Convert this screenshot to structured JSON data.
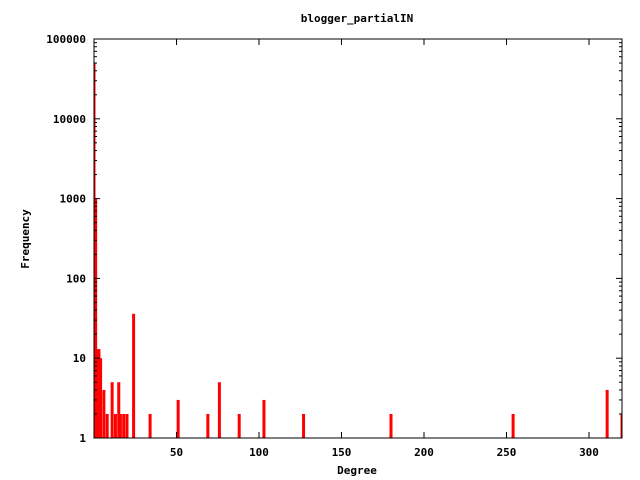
{
  "chart_data": {
    "type": "bar",
    "title": "blogger_partialIN",
    "xlabel": "Degree",
    "ylabel": "Frequency",
    "xlim": [
      0,
      320
    ],
    "ylim": [
      1,
      100000
    ],
    "yscale": "log",
    "grid": false,
    "bar_color": "#ff0000",
    "x_ticks": [
      {
        "value": 50,
        "label": "50"
      },
      {
        "value": 100,
        "label": "100"
      },
      {
        "value": 150,
        "label": "150"
      },
      {
        "value": 200,
        "label": "200"
      },
      {
        "value": 250,
        "label": "250"
      },
      {
        "value": 300,
        "label": "300"
      }
    ],
    "y_ticks": [
      {
        "value": 1,
        "label": "1"
      },
      {
        "value": 10,
        "label": "10"
      },
      {
        "value": 100,
        "label": "100"
      },
      {
        "value": 1000,
        "label": "1000"
      },
      {
        "value": 10000,
        "label": "10000"
      },
      {
        "value": 100000,
        "label": "100000"
      }
    ],
    "points": [
      {
        "x": 0,
        "y": 50000
      },
      {
        "x": 1,
        "y": 1000
      },
      {
        "x": 2,
        "y": 13
      },
      {
        "x": 3,
        "y": 13
      },
      {
        "x": 4,
        "y": 10
      },
      {
        "x": 6,
        "y": 4
      },
      {
        "x": 8,
        "y": 2
      },
      {
        "x": 11,
        "y": 5
      },
      {
        "x": 13,
        "y": 2
      },
      {
        "x": 15,
        "y": 5
      },
      {
        "x": 16,
        "y": 2
      },
      {
        "x": 18,
        "y": 2
      },
      {
        "x": 20,
        "y": 2
      },
      {
        "x": 24,
        "y": 36
      },
      {
        "x": 34,
        "y": 2
      },
      {
        "x": 51,
        "y": 3
      },
      {
        "x": 69,
        "y": 2
      },
      {
        "x": 76,
        "y": 5
      },
      {
        "x": 88,
        "y": 2
      },
      {
        "x": 103,
        "y": 3
      },
      {
        "x": 127,
        "y": 2
      },
      {
        "x": 180,
        "y": 2
      },
      {
        "x": 254,
        "y": 2
      },
      {
        "x": 311,
        "y": 4
      },
      {
        "x": 320,
        "y": 2
      }
    ]
  }
}
